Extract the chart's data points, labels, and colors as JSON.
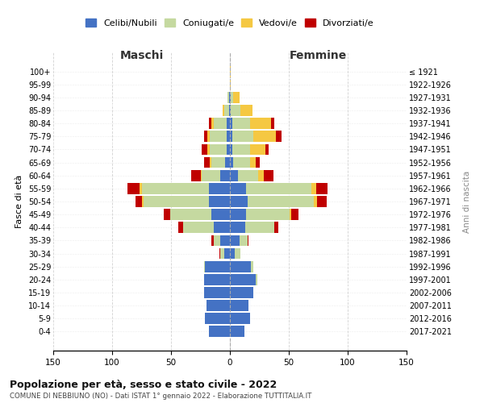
{
  "age_groups": [
    "0-4",
    "5-9",
    "10-14",
    "15-19",
    "20-24",
    "25-29",
    "30-34",
    "35-39",
    "40-44",
    "45-49",
    "50-54",
    "55-59",
    "60-64",
    "65-69",
    "70-74",
    "75-79",
    "80-84",
    "85-89",
    "90-94",
    "95-99",
    "100+"
  ],
  "birth_years": [
    "2017-2021",
    "2012-2016",
    "2007-2011",
    "2002-2006",
    "1997-2001",
    "1992-1996",
    "1987-1991",
    "1982-1986",
    "1977-1981",
    "1972-1976",
    "1967-1971",
    "1962-1966",
    "1957-1961",
    "1952-1956",
    "1947-1951",
    "1942-1946",
    "1937-1941",
    "1932-1936",
    "1927-1931",
    "1922-1926",
    "≤ 1921"
  ],
  "colors": {
    "celibi": "#4472C4",
    "coniugati": "#C5D9A0",
    "vedovi": "#F5C842",
    "divorziati": "#C00000"
  },
  "maschi": {
    "celibi": [
      18,
      21,
      20,
      22,
      22,
      21,
      5,
      8,
      14,
      16,
      18,
      18,
      8,
      4,
      3,
      3,
      3,
      1,
      1,
      0,
      0
    ],
    "coniugati": [
      0,
      0,
      0,
      0,
      0,
      1,
      3,
      6,
      26,
      35,
      55,
      57,
      16,
      12,
      14,
      14,
      11,
      4,
      1,
      0,
      0
    ],
    "vedovi": [
      0,
      0,
      0,
      0,
      0,
      0,
      0,
      0,
      0,
      0,
      2,
      2,
      1,
      1,
      2,
      2,
      2,
      1,
      0,
      0,
      0
    ],
    "divorziati": [
      0,
      0,
      0,
      0,
      0,
      0,
      1,
      2,
      4,
      5,
      5,
      10,
      8,
      5,
      5,
      3,
      2,
      0,
      0,
      0,
      0
    ]
  },
  "femmine": {
    "celibi": [
      12,
      17,
      16,
      20,
      22,
      18,
      4,
      8,
      13,
      14,
      15,
      14,
      7,
      3,
      2,
      2,
      2,
      1,
      1,
      0,
      0
    ],
    "coniugati": [
      0,
      0,
      0,
      0,
      1,
      2,
      5,
      7,
      25,
      37,
      56,
      55,
      17,
      14,
      15,
      18,
      15,
      8,
      2,
      0,
      0
    ],
    "vedovi": [
      0,
      0,
      0,
      0,
      0,
      0,
      0,
      0,
      0,
      1,
      3,
      4,
      5,
      5,
      13,
      19,
      18,
      10,
      5,
      1,
      1
    ],
    "divorziati": [
      0,
      0,
      0,
      0,
      0,
      0,
      0,
      1,
      3,
      6,
      8,
      10,
      8,
      3,
      3,
      5,
      3,
      0,
      0,
      0,
      0
    ]
  },
  "xlim": 150,
  "title": "Popolazione per età, sesso e stato civile - 2022",
  "subtitle": "COMUNE DI NEBBIUNO (NO) - Dati ISTAT 1° gennaio 2022 - Elaborazione TUTTITALIA.IT",
  "ylabel_left": "Fasce di età",
  "ylabel_right": "Anni di nascita",
  "xlabel_left": "Maschi",
  "xlabel_right": "Femmine",
  "bg_color": "#ffffff",
  "grid_color": "#cccccc",
  "bar_height": 0.85
}
